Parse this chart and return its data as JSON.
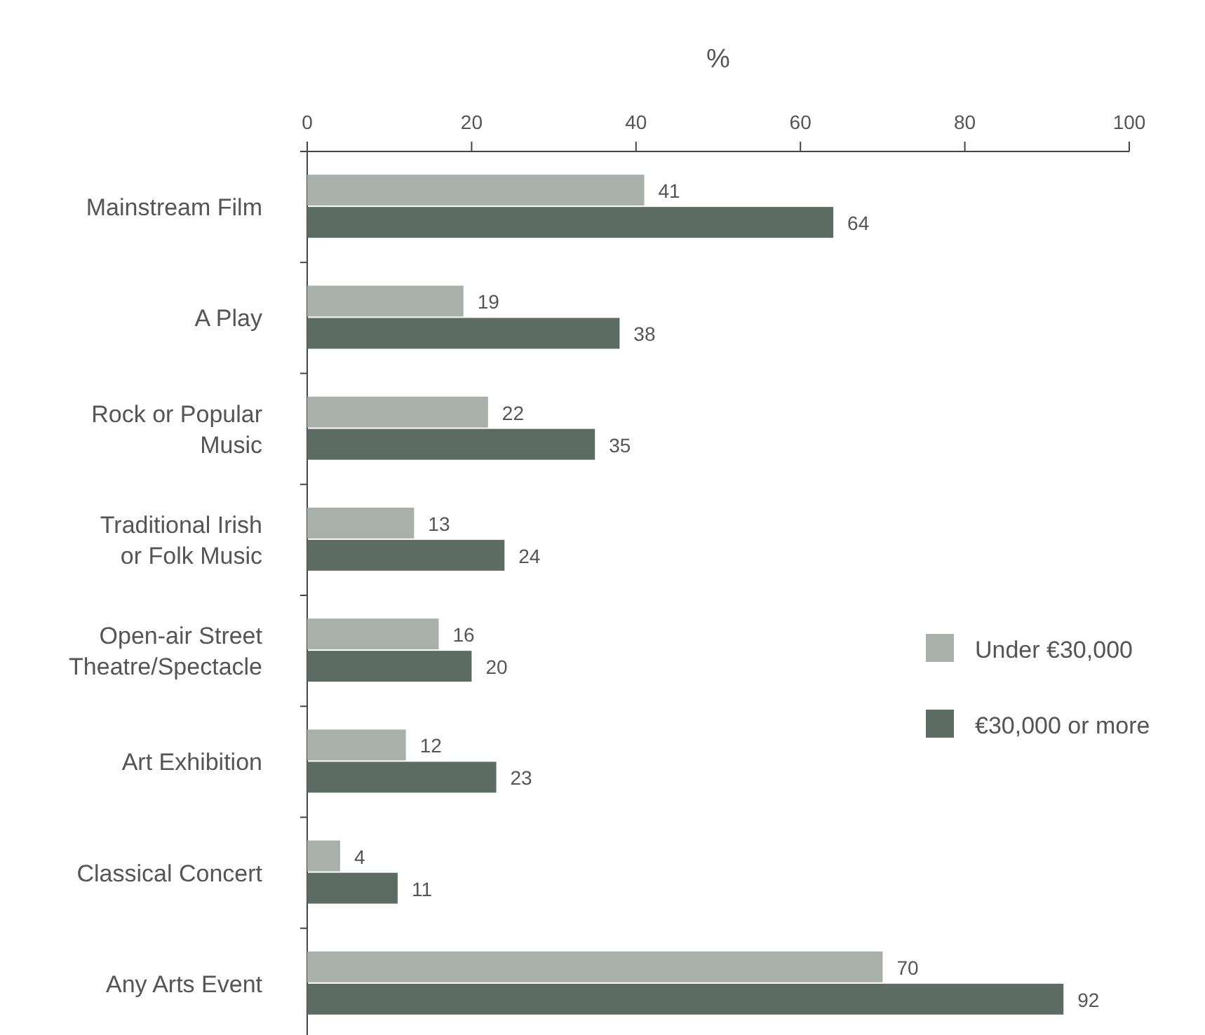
{
  "chart_data": {
    "type": "bar",
    "orientation": "horizontal",
    "xlabel": "%",
    "categories": [
      "Mainstream Film",
      "A Play",
      "Rock or Popular Music",
      "Traditional Irish or Folk Music",
      "Open-air Street Theatre/Spectacle",
      "Art Exhibition",
      "Classical Concert",
      "Any Arts Event"
    ],
    "series": [
      {
        "name": "Under €30,000",
        "color": "#a9b0ab",
        "values": [
          41,
          19,
          22,
          13,
          16,
          12,
          4,
          70
        ]
      },
      {
        "name": "€30,000 or more",
        "color": "#5c6b63",
        "values": [
          64,
          38,
          35,
          24,
          20,
          23,
          11,
          92
        ]
      }
    ],
    "xlim": [
      0,
      100
    ],
    "xticks": [
      0,
      20,
      40,
      60,
      80,
      100
    ],
    "data_labels": true,
    "legend": "right",
    "grid": false
  }
}
